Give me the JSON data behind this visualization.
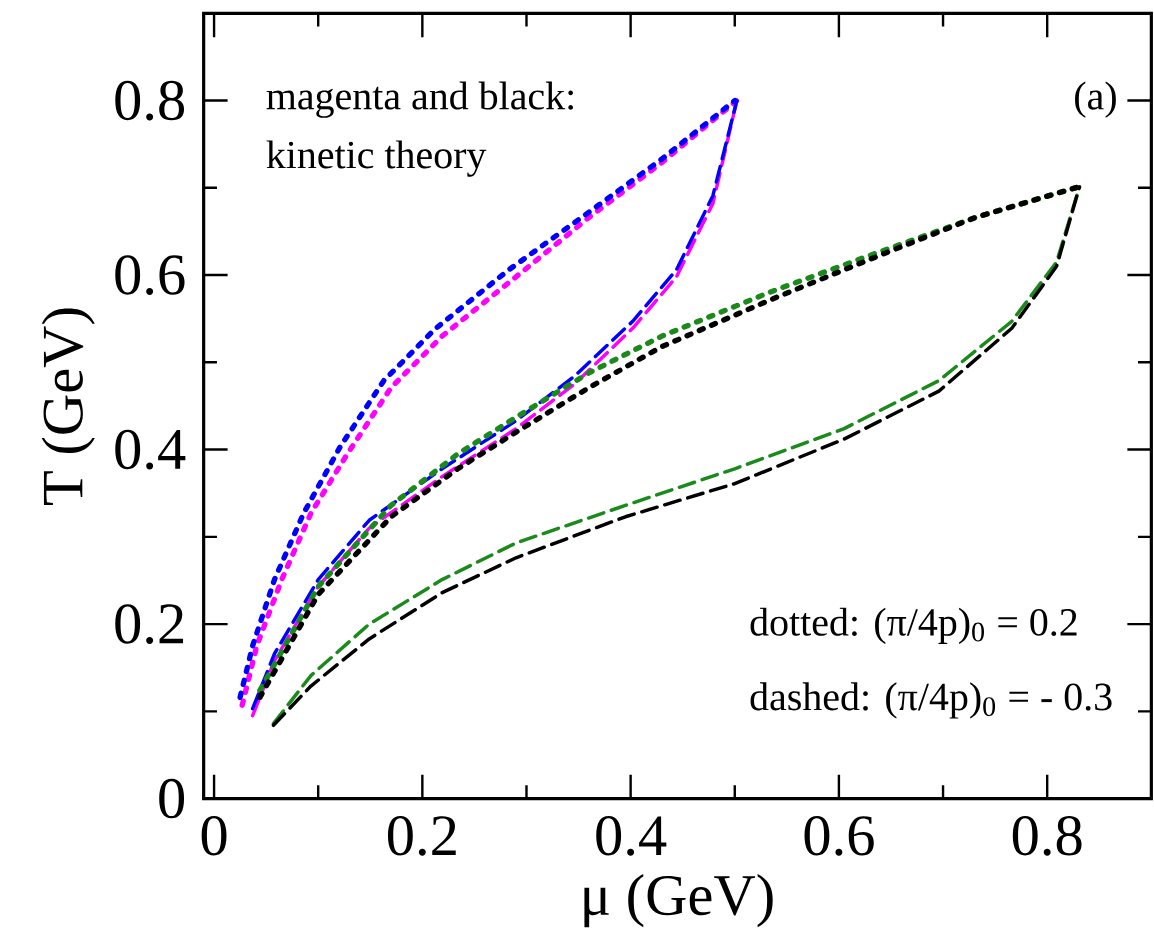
{
  "chart_data": {
    "type": "line",
    "xlabel": "μ (GeV)",
    "ylabel": "T (GeV)",
    "xlim": [
      -0.01,
      0.9
    ],
    "ylim": [
      0,
      0.9
    ],
    "xticks": [
      0,
      {
        "value": 0.1,
        "label": null
      },
      0.2,
      {
        "value": 0.3,
        "label": null
      },
      0.4,
      {
        "value": 0.5,
        "label": null
      },
      0.6,
      {
        "value": 0.7,
        "label": null
      },
      0.8
    ],
    "yticks": [
      0,
      {
        "value": 0.1,
        "label": null
      },
      0.2,
      {
        "value": 0.3,
        "label": null
      },
      0.4,
      {
        "value": 0.5,
        "label": null
      },
      0.6,
      {
        "value": 0.7,
        "label": null
      },
      0.8
    ],
    "grid": false,
    "marker": "none",
    "annotations": [
      "magenta and black:",
      "kinetic theory",
      "(a)",
      "dotted: (π/4p)$_{0}$ = 0.2",
      "dashed: (π/4p)$_{0}$ = - 0.3"
    ],
    "series": [
      {
        "color": "#ff00ff",
        "line_style": "dotted",
        "x": [
          0.027,
          0.041,
          0.065,
          0.093,
          0.128,
          0.17,
          0.219,
          0.29,
          0.36,
          0.43,
          0.502
        ],
        "values": [
          0.107,
          0.175,
          0.251,
          0.327,
          0.395,
          0.471,
          0.53,
          0.598,
          0.666,
          0.729,
          0.8
        ]
      },
      {
        "color": "#0000ff",
        "line_style": "dotted",
        "x": [
          0.025,
          0.037,
          0.058,
          0.086,
          0.121,
          0.163,
          0.212,
          0.283,
          0.353,
          0.43,
          0.5
        ],
        "values": [
          0.116,
          0.175,
          0.251,
          0.327,
          0.403,
          0.479,
          0.538,
          0.606,
          0.666,
          0.733,
          0.8
        ]
      },
      {
        "color": "#ff00ff",
        "line_style": "dashed",
        "x": [
          0.037,
          0.058,
          0.1,
          0.149,
          0.219,
          0.29,
          0.346,
          0.402,
          0.444,
          0.479,
          0.502
        ],
        "values": [
          0.095,
          0.158,
          0.243,
          0.31,
          0.369,
          0.424,
          0.475,
          0.539,
          0.598,
          0.682,
          0.8
        ]
      },
      {
        "color": "#0000ff",
        "line_style": "dashed",
        "x": [
          0.037,
          0.058,
          0.1,
          0.149,
          0.219,
          0.29,
          0.346,
          0.402,
          0.444,
          0.479,
          0.502
        ],
        "values": [
          0.103,
          0.166,
          0.251,
          0.319,
          0.378,
          0.433,
          0.484,
          0.547,
          0.606,
          0.691,
          0.8
        ]
      },
      {
        "color": "#1a8a1a",
        "line_style": "dotted",
        "x": [
          0.044,
          0.1,
          0.17,
          0.234,
          0.29,
          0.36,
          0.43,
          0.535,
          0.64,
          0.731,
          0.83
        ],
        "values": [
          0.124,
          0.243,
          0.336,
          0.395,
          0.437,
          0.488,
          0.53,
          0.581,
          0.627,
          0.666,
          0.701
        ]
      },
      {
        "color": "#000000",
        "line_style": "dotted",
        "x": [
          0.044,
          0.1,
          0.17,
          0.234,
          0.29,
          0.36,
          0.43,
          0.535,
          0.64,
          0.731,
          0.83
        ],
        "values": [
          0.116,
          0.234,
          0.323,
          0.378,
          0.42,
          0.471,
          0.518,
          0.572,
          0.623,
          0.666,
          0.701
        ]
      },
      {
        "color": "#1a8a1a",
        "line_style": "dashed",
        "x": [
          0.057,
          0.093,
          0.149,
          0.219,
          0.29,
          0.395,
          0.5,
          0.605,
          0.696,
          0.766,
          0.809,
          0.831
        ],
        "values": [
          0.086,
          0.141,
          0.2,
          0.251,
          0.293,
          0.336,
          0.378,
          0.424,
          0.479,
          0.547,
          0.615,
          0.701
        ]
      },
      {
        "color": "#000000",
        "line_style": "dashed",
        "x": [
          0.057,
          0.093,
          0.149,
          0.219,
          0.29,
          0.395,
          0.5,
          0.605,
          0.696,
          0.766,
          0.809,
          0.831
        ],
        "values": [
          0.084,
          0.129,
          0.183,
          0.236,
          0.276,
          0.323,
          0.361,
          0.412,
          0.467,
          0.539,
          0.61,
          0.701
        ]
      }
    ]
  }
}
